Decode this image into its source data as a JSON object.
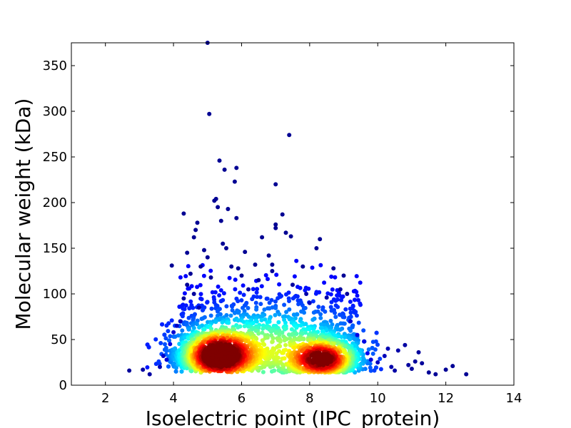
{
  "chart_data": {
    "type": "scatter",
    "title": "",
    "xlabel": "Isoelectric point (IPC_protein)",
    "ylabel": "Molecular weight (kDa)",
    "xlim": [
      1,
      14
    ],
    "ylim": [
      0,
      375
    ],
    "x_ticks": [
      "2",
      "4",
      "6",
      "8",
      "10",
      "12",
      "14"
    ],
    "y_ticks": [
      "0",
      "50",
      "100",
      "150",
      "200",
      "250",
      "300",
      "350"
    ],
    "grid": false,
    "legend": "none",
    "colormap": [
      "#00007f",
      "#0000ff",
      "#007fff",
      "#00ffff",
      "#7fff7f",
      "#ffff00",
      "#ff7f00",
      "#ff0000",
      "#7f0000"
    ],
    "clusters": [
      {
        "center_x": 5.3,
        "center_y": 32,
        "spread_x": 0.55,
        "spread_y": 14,
        "density": "highest"
      },
      {
        "center_x": 8.4,
        "center_y": 28,
        "spread_x": 0.5,
        "spread_y": 11,
        "density": "high"
      }
    ],
    "points": [
      [
        2.7,
        16
      ],
      [
        3.1,
        17
      ],
      [
        3.3,
        12
      ],
      [
        3.6,
        20
      ],
      [
        3.7,
        32
      ],
      [
        3.8,
        28
      ],
      [
        3.9,
        45
      ],
      [
        3.95,
        131
      ],
      [
        4.0,
        58
      ],
      [
        4.1,
        65
      ],
      [
        4.2,
        70
      ],
      [
        4.3,
        95
      ],
      [
        4.3,
        188
      ],
      [
        4.4,
        145
      ],
      [
        4.4,
        110
      ],
      [
        4.5,
        122
      ],
      [
        4.6,
        100
      ],
      [
        4.6,
        162
      ],
      [
        4.65,
        170
      ],
      [
        4.7,
        178
      ],
      [
        4.75,
        85
      ],
      [
        4.8,
        130
      ],
      [
        4.9,
        148
      ],
      [
        5.0,
        375
      ],
      [
        5.0,
        140
      ],
      [
        5.05,
        297
      ],
      [
        5.1,
        118
      ],
      [
        5.2,
        202
      ],
      [
        5.25,
        204
      ],
      [
        5.3,
        195
      ],
      [
        5.35,
        246
      ],
      [
        5.4,
        180
      ],
      [
        5.45,
        155
      ],
      [
        5.5,
        236
      ],
      [
        5.55,
        150
      ],
      [
        5.6,
        193
      ],
      [
        5.7,
        130
      ],
      [
        5.8,
        223
      ],
      [
        5.85,
        238
      ],
      [
        5.85,
        183
      ],
      [
        5.9,
        128
      ],
      [
        6.0,
        120
      ],
      [
        6.1,
        146
      ],
      [
        6.2,
        105
      ],
      [
        6.4,
        132
      ],
      [
        6.5,
        115
      ],
      [
        6.6,
        162
      ],
      [
        6.8,
        142
      ],
      [
        6.9,
        132
      ],
      [
        6.9,
        125
      ],
      [
        7.0,
        220
      ],
      [
        7.0,
        172
      ],
      [
        7.0,
        176
      ],
      [
        7.2,
        187
      ],
      [
        7.3,
        167
      ],
      [
        7.4,
        274
      ],
      [
        7.45,
        163
      ],
      [
        7.5,
        110
      ],
      [
        7.8,
        130
      ],
      [
        7.9,
        100
      ],
      [
        8.0,
        90
      ],
      [
        8.2,
        150
      ],
      [
        8.3,
        160
      ],
      [
        8.5,
        96
      ],
      [
        8.7,
        128
      ],
      [
        8.9,
        105
      ],
      [
        9.0,
        120
      ],
      [
        9.1,
        100
      ],
      [
        9.2,
        70
      ],
      [
        9.4,
        55
      ],
      [
        9.6,
        48
      ],
      [
        9.7,
        35
      ],
      [
        9.8,
        28
      ],
      [
        10.0,
        25
      ],
      [
        10.2,
        32
      ],
      [
        10.3,
        40
      ],
      [
        10.4,
        20
      ],
      [
        10.5,
        16
      ],
      [
        10.6,
        38
      ],
      [
        10.8,
        44
      ],
      [
        10.9,
        22
      ],
      [
        11.0,
        18
      ],
      [
        11.1,
        26
      ],
      [
        11.2,
        36
      ],
      [
        11.3,
        24
      ],
      [
        11.5,
        14
      ],
      [
        11.7,
        12
      ],
      [
        12.0,
        17
      ],
      [
        12.2,
        21
      ],
      [
        12.6,
        12
      ]
    ]
  }
}
